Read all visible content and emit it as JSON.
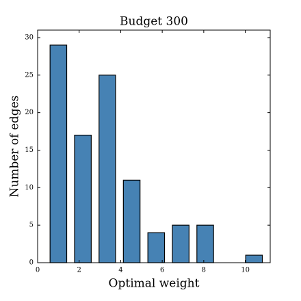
{
  "chart_data": {
    "type": "histogram",
    "title": "Budget 300",
    "x_label": "Optimal weight",
    "y_label": "Number of edges",
    "bins": [
      0.41,
      1.59,
      2.77,
      3.94,
      5.12,
      6.3,
      7.48,
      8.66,
      9.83,
      11.01
    ],
    "values": [
      29,
      17,
      25,
      11,
      4,
      5,
      5,
      0,
      1
    ],
    "color": "#4682b4",
    "xlim": [
      0,
      11.2
    ],
    "xticks": [
      0,
      2,
      4,
      6,
      8,
      10
    ],
    "ylim": [
      0,
      31
    ],
    "yticks": [
      0,
      5,
      10,
      15,
      20,
      25,
      30
    ]
  }
}
